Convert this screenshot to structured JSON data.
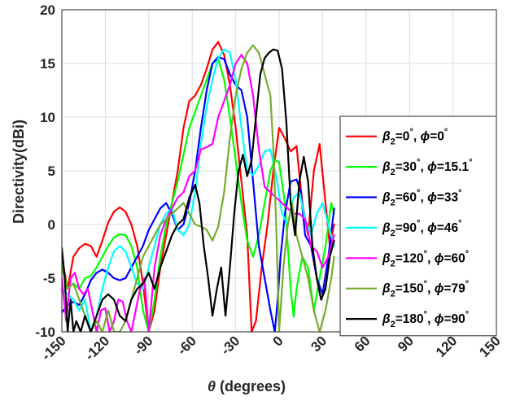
{
  "chart_data": {
    "type": "line",
    "xlabel": "θ (degrees)",
    "ylabel": "Directivity(dBi)",
    "xlim": [
      -150,
      150
    ],
    "ylim": [
      -10,
      20
    ],
    "xticks": [
      -150,
      -120,
      -90,
      -60,
      -30,
      0,
      30,
      60,
      90,
      120,
      150
    ],
    "yticks": [
      -10,
      -5,
      0,
      5,
      10,
      15,
      20
    ],
    "grid": true,
    "legend_position": "right, vertically centered",
    "series": [
      {
        "name": "β2=0°, ϕ=0°",
        "legend_parts": [
          "β",
          "2",
          "=0",
          "°",
          ", ",
          "ϕ",
          "=0",
          "°"
        ],
        "color": "#ff0000",
        "x": [
          -150,
          -146,
          -142,
          -138,
          -134,
          -130,
          -126,
          -122,
          -118,
          -114,
          -110,
          -106,
          -102,
          -98,
          -94,
          -90,
          -86,
          -82,
          -78,
          -74,
          -70,
          -66,
          -62,
          -58,
          -54,
          -50,
          -46,
          -42,
          -38,
          -34,
          -30,
          -26,
          -22,
          -19,
          -16,
          -12,
          -8,
          -4,
          0,
          4,
          8,
          12,
          16,
          20,
          24,
          28,
          32,
          35,
          38
        ],
        "values": [
          -3.0,
          -6.0,
          -3.0,
          -2.2,
          -1.8,
          -2.0,
          -3.0,
          -1.5,
          0.2,
          1.2,
          1.6,
          1.2,
          0.0,
          -2.0,
          -5.5,
          -10,
          -8.0,
          -4.0,
          -1.0,
          2.0,
          5.0,
          9.0,
          11.5,
          12.0,
          13.0,
          14.5,
          16.3,
          17.0,
          15.8,
          13.0,
          9.0,
          4.0,
          -1.0,
          -10,
          -9.0,
          -4.0,
          0.0,
          5.0,
          9.0,
          8.0,
          6.8,
          7.3,
          2.0,
          -1.0,
          5.0,
          7.5,
          2.0,
          -2.0,
          0.0
        ]
      },
      {
        "name": "β2=30°, ϕ=15.1°",
        "legend_parts": [
          "β",
          "2",
          "=30",
          "°",
          ", ",
          "ϕ",
          "=15.1",
          "°"
        ],
        "color": "#00ff00",
        "x": [
          -150,
          -146,
          -142,
          -138,
          -134,
          -130,
          -126,
          -122,
          -118,
          -114,
          -110,
          -106,
          -102,
          -98,
          -94,
          -90,
          -86,
          -82,
          -78,
          -74,
          -70,
          -66,
          -62,
          -58,
          -54,
          -50,
          -46,
          -42,
          -38,
          -34,
          -30,
          -26,
          -22,
          -18,
          -14,
          -10,
          -6,
          -3,
          0,
          4,
          8,
          10,
          12,
          16,
          20,
          24,
          28,
          32,
          36,
          38
        ],
        "values": [
          -3.5,
          -6.0,
          -5.5,
          -6.0,
          -5.0,
          -4.8,
          -4.0,
          -3.0,
          -2.0,
          -1.2,
          -0.9,
          -1.0,
          -2.0,
          -4.0,
          -8.0,
          -10,
          -7.0,
          -3.0,
          0.0,
          2.0,
          4.0,
          6.5,
          9.0,
          10.5,
          12.0,
          13.5,
          15.0,
          15.4,
          13.5,
          10.0,
          6.0,
          2.0,
          -1.5,
          -3.0,
          -1.0,
          2.0,
          5.0,
          6.0,
          5.8,
          2.0,
          -6.0,
          -8.6,
          -6.0,
          -3.0,
          -4.0,
          -8.0,
          -5.0,
          -2.0,
          2.0,
          1.0
        ]
      },
      {
        "name": "β2=60°, ϕ=33°",
        "legend_parts": [
          "β",
          "2",
          "=60",
          "°",
          ", ",
          "ϕ",
          "=33",
          "°"
        ],
        "color": "#0000ff",
        "x": [
          -150,
          -146,
          -142,
          -138,
          -134,
          -130,
          -126,
          -122,
          -118,
          -114,
          -110,
          -106,
          -102,
          -98,
          -94,
          -90,
          -86,
          -82,
          -78,
          -74,
          -70,
          -66,
          -62,
          -58,
          -54,
          -50,
          -46,
          -42,
          -38,
          -34,
          -30,
          -26,
          -22,
          -18,
          -14,
          -10,
          -6,
          -3,
          -1,
          1,
          4,
          8,
          12,
          15,
          18,
          22,
          26,
          30,
          34,
          38
        ],
        "values": [
          -8.2,
          -7.5,
          -7.2,
          -7.5,
          -6.5,
          -5.2,
          -4.5,
          -4.2,
          -4.5,
          -5.0,
          -5.2,
          -5.0,
          -4.0,
          -3.0,
          -2.0,
          -0.5,
          0.5,
          1.5,
          2.0,
          1.0,
          -0.5,
          0.0,
          2.0,
          5.0,
          9.0,
          12.5,
          15.0,
          15.6,
          15.4,
          14.0,
          13.0,
          12.5,
          10.0,
          4.0,
          -2.0,
          -5.0,
          -8.0,
          -10,
          -7.0,
          -3.0,
          1.0,
          4.0,
          4.2,
          3.0,
          -1.0,
          -2.0,
          -5.0,
          -6.5,
          -3.0,
          1.5
        ]
      },
      {
        "name": "β2=90°, ϕ=46°",
        "legend_parts": [
          "β",
          "2",
          "=90",
          "°",
          ", ",
          "ϕ",
          "=46",
          "°"
        ],
        "color": "#00ffff",
        "x": [
          -150,
          -146,
          -142,
          -138,
          -134,
          -130,
          -126,
          -122,
          -118,
          -114,
          -110,
          -106,
          -102,
          -98,
          -94,
          -90,
          -86,
          -82,
          -78,
          -74,
          -70,
          -66,
          -62,
          -58,
          -54,
          -50,
          -46,
          -42,
          -38,
          -34,
          -30,
          -26,
          -22,
          -18,
          -14,
          -10,
          -6,
          -2,
          2,
          6,
          10,
          14,
          18,
          22,
          26,
          30,
          34,
          38
        ],
        "values": [
          -6.0,
          -6.5,
          -7.0,
          -8.0,
          -7.0,
          -10,
          -8.5,
          -6.0,
          -4.0,
          -2.5,
          -2.0,
          -2.5,
          -4.0,
          -5.5,
          -6.0,
          -4.0,
          -2.0,
          0.0,
          1.0,
          1.5,
          -0.5,
          -1.0,
          0.0,
          3.0,
          7.5,
          11.0,
          13.5,
          15.5,
          16.3,
          16.0,
          13.5,
          9.0,
          5.0,
          4.6,
          5.5,
          6.8,
          7.0,
          4.5,
          1.0,
          0.0,
          2.5,
          3.0,
          0.5,
          -1.0,
          1.0,
          2.0,
          0.0,
          -2.0
        ]
      },
      {
        "name": "β2=120°, ϕ=60°",
        "legend_parts": [
          "β",
          "2",
          "=120",
          "°",
          ", ",
          "ϕ",
          "=60",
          "°"
        ],
        "color": "#ff00ff",
        "x": [
          -150,
          -147,
          -144,
          -141,
          -138,
          -135,
          -132,
          -129,
          -126,
          -123,
          -120,
          -117,
          -114,
          -111,
          -108,
          -105,
          -102,
          -99,
          -96,
          -93,
          -90,
          -86,
          -82,
          -78,
          -74,
          -70,
          -66,
          -62,
          -58,
          -54,
          -50,
          -46,
          -42,
          -38,
          -34,
          -30,
          -26,
          -22,
          -18,
          -14,
          -10,
          -6,
          -2,
          2,
          6,
          10,
          14,
          18,
          22,
          26,
          30,
          34,
          38
        ],
        "values": [
          -5.0,
          -9.0,
          -5.0,
          -4.5,
          -6.0,
          -6.5,
          -6.0,
          -8.0,
          -10,
          -8.0,
          -7.8,
          -10,
          -9.0,
          -7.0,
          -7.2,
          -9.0,
          -10,
          -8.0,
          -6.0,
          -5.0,
          -10,
          -4.0,
          -1.0,
          0.5,
          1.5,
          2.5,
          3.0,
          4.5,
          5.0,
          7.0,
          7.2,
          7.5,
          10.0,
          11.5,
          13.0,
          15.0,
          15.8,
          15.0,
          12.0,
          7.0,
          3.5,
          3.0,
          2.5,
          2.0,
          1.5,
          1.0,
          1.0,
          0.5,
          -2.0,
          -2.5,
          -4.0,
          -3.0,
          -1.0
        ]
      },
      {
        "name": "β2=150°, ϕ=79°",
        "legend_parts": [
          "β",
          "2",
          "=150",
          "°",
          ", ",
          "ϕ",
          "=79",
          "°"
        ],
        "color": "#77ac30",
        "x": [
          -150,
          -146,
          -142,
          -138,
          -134,
          -130,
          -126,
          -122,
          -118,
          -114,
          -110,
          -106,
          -102,
          -98,
          -94,
          -90,
          -86,
          -82,
          -78,
          -74,
          -70,
          -66,
          -62,
          -58,
          -54,
          -50,
          -46,
          -42,
          -38,
          -34,
          -30,
          -26,
          -22,
          -18,
          -14,
          -10,
          -6,
          -4,
          -2,
          0,
          3,
          6,
          9,
          12,
          16,
          20,
          24,
          28,
          32,
          36,
          38
        ],
        "values": [
          -4.0,
          -6.0,
          -5.5,
          -7.0,
          -8.5,
          -10,
          -9.0,
          -10,
          -8.0,
          -10,
          -10,
          -9.0,
          -7.0,
          -5.0,
          -3.0,
          -2.0,
          -1.0,
          0.0,
          0.5,
          1.0,
          1.5,
          2.0,
          1.0,
          0.0,
          -0.2,
          -0.5,
          -1.5,
          -0.2,
          3.0,
          8.0,
          12.0,
          14.5,
          16.0,
          16.7,
          16.0,
          14.0,
          12.0,
          7.0,
          0.0,
          -10,
          -4.0,
          0.0,
          2.0,
          -1.0,
          -3.0,
          -5.0,
          -8.0,
          -10,
          -8.0,
          -5.0,
          -3.0
        ]
      },
      {
        "name": "β2=180°, ϕ=90°",
        "legend_parts": [
          "β",
          "2",
          "=180",
          "°",
          ", ",
          "ϕ",
          "=90",
          "°"
        ],
        "color": "#000000",
        "x": [
          -150,
          -148,
          -146,
          -144,
          -142,
          -140,
          -137,
          -134,
          -130,
          -126,
          -122,
          -118,
          -114,
          -110,
          -106,
          -102,
          -98,
          -94,
          -90,
          -86,
          -82,
          -78,
          -74,
          -70,
          -66,
          -62,
          -58,
          -55,
          -52,
          -49,
          -46,
          -43,
          -40,
          -37,
          -34,
          -31,
          -28,
          -25,
          -22,
          -19,
          -16,
          -13,
          -10,
          -7,
          -4,
          -1,
          2,
          5,
          8,
          11,
          14,
          17,
          20,
          23,
          26,
          29,
          32,
          35,
          38
        ],
        "values": [
          -2.2,
          -5.0,
          -10,
          -7.0,
          -10,
          -9.0,
          -10,
          -8.5,
          -10,
          -8.5,
          -7.0,
          -6.5,
          -7.0,
          -8.5,
          -9.0,
          -7.0,
          -6.0,
          -5.5,
          -4.5,
          -6.0,
          -4.0,
          -2.5,
          -1.0,
          0.0,
          0.5,
          2.5,
          3.7,
          2.0,
          -2.0,
          -5.0,
          -8.5,
          -6.0,
          -4.0,
          -8.5,
          -4.0,
          1.0,
          5.0,
          6.5,
          4.5,
          6.0,
          10.0,
          14.0,
          15.5,
          16.0,
          16.3,
          16.2,
          14.5,
          9.5,
          2.0,
          -1.0,
          4.0,
          6.3,
          4.0,
          -2.0,
          -5.0,
          -7.0,
          -6.0,
          -3.0,
          -1.5
        ]
      }
    ]
  }
}
